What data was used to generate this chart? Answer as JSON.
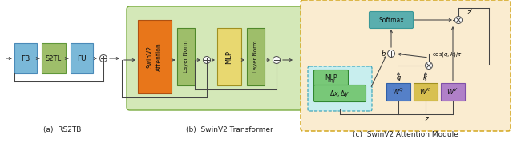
{
  "fig_width": 6.4,
  "fig_height": 1.79,
  "dpi": 100,
  "bg": "#ffffff",
  "blue": "#7ab8d8",
  "green_box": "#9ebe6a",
  "orange_box": "#e8761a",
  "yellow_box": "#e8d870",
  "teal_box": "#5aaeae",
  "wq_blue": "#5580c8",
  "wk_yellow": "#d8c050",
  "wv_purple": "#b080c8",
  "green_bg": "#d4e8b8",
  "orange_bg": "#faecd0",
  "cyan_bg": "#c8eeee",
  "mlp_green": "#78c878",
  "line": "#444444",
  "caption_a": "(a)  RS2TB",
  "caption_b": "(b)  SwinV2 Transformer",
  "caption_c": "(c)  SwinV2 Attention Module"
}
